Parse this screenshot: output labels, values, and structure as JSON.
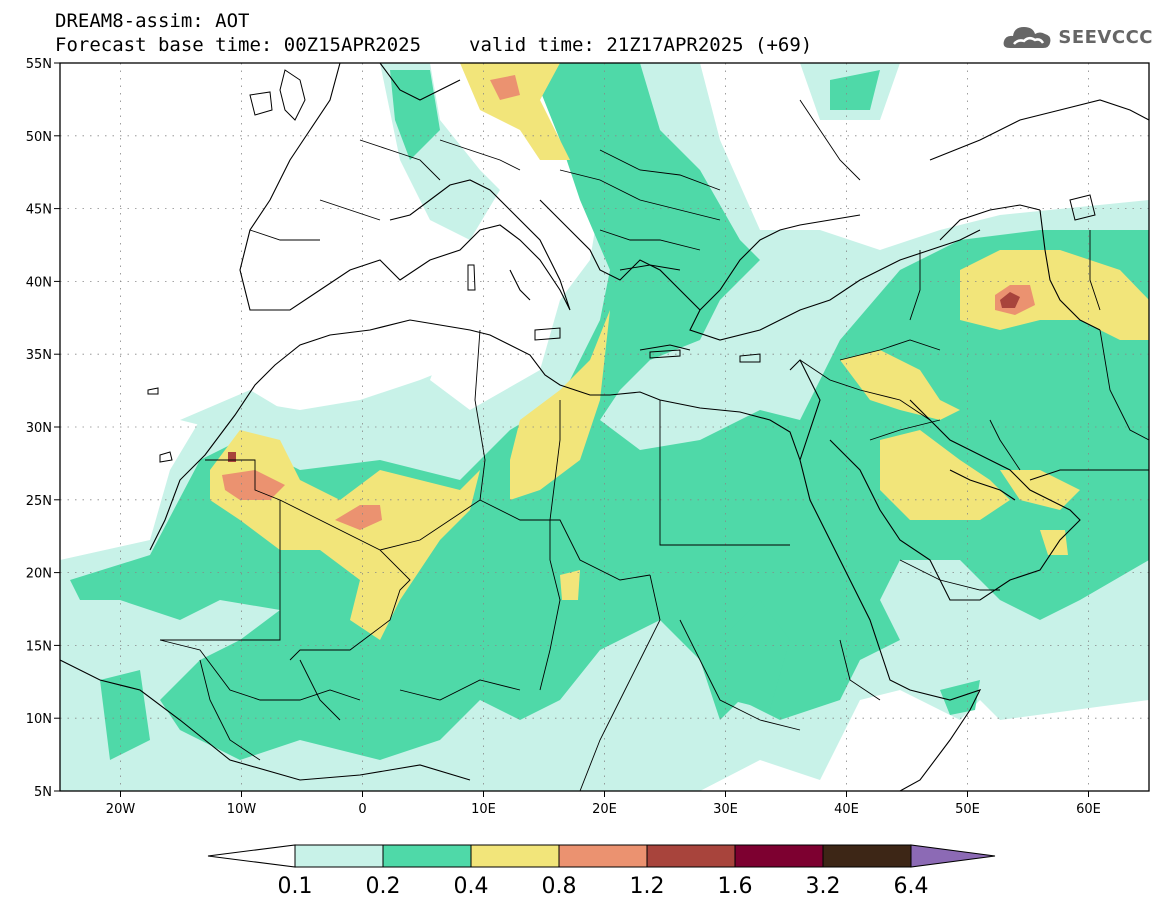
{
  "header": {
    "title": "DREAM8-assim: AOT",
    "base_time": "Forecast base time: 00Z15APR2025",
    "valid_time": "valid time: 21Z17APR2025 (+69)"
  },
  "logo": {
    "text": "SEEVCCC",
    "icon": "cloud-icon"
  },
  "map": {
    "lon_range": [
      -25,
      65
    ],
    "lat_range": [
      5,
      55
    ],
    "lon_ticks": [
      "20W",
      "10W",
      "0",
      "10E",
      "20E",
      "30E",
      "40E",
      "50E",
      "60E"
    ],
    "lat_ticks": [
      "55N",
      "50N",
      "45N",
      "40N",
      "35N",
      "30N",
      "25N",
      "20N",
      "15N",
      "10N",
      "5N"
    ],
    "grid": "dotted"
  },
  "colorbar": {
    "labels": [
      "0.1",
      "0.2",
      "0.4",
      "0.8",
      "1.2",
      "1.6",
      "3.2",
      "6.4"
    ],
    "colors": [
      "#c8f2e8",
      "#4fd9a8",
      "#f2e57a",
      "#eb9270",
      "#a8443c",
      "#7d0030",
      "#3d2616"
    ],
    "under_color": "#ffffff",
    "over_color": "#8c6ab5"
  },
  "colors": {
    "c01": "#c8f2e8",
    "c02": "#4fd9a8",
    "c04": "#f2e57a",
    "c08": "#eb9270",
    "c12": "#a8443c"
  }
}
